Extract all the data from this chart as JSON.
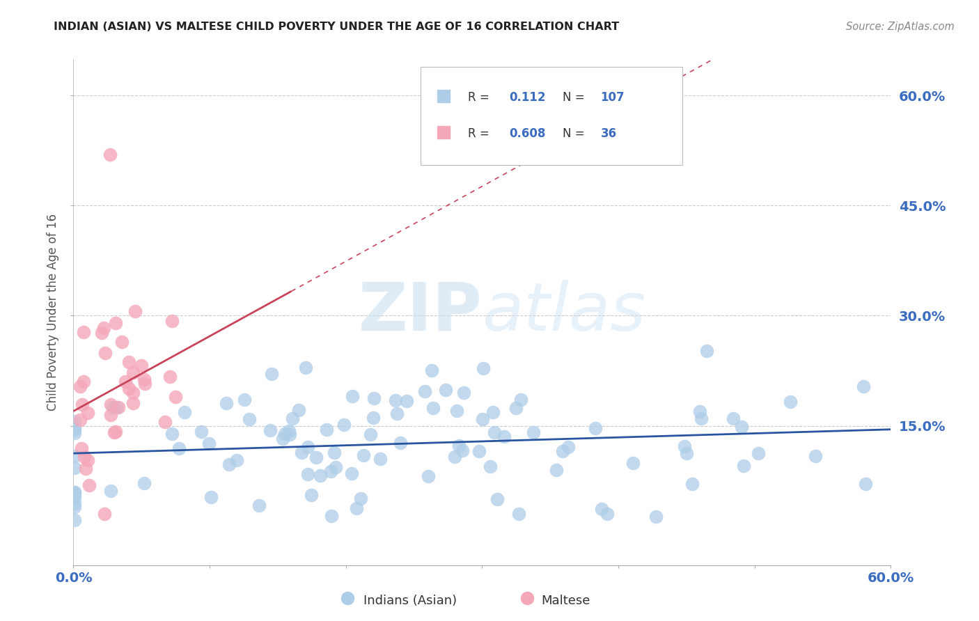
{
  "title": "INDIAN (ASIAN) VS MALTESE CHILD POVERTY UNDER THE AGE OF 16 CORRELATION CHART",
  "source": "Source: ZipAtlas.com",
  "ylabel": "Child Poverty Under the Age of 16",
  "xlim": [
    0.0,
    0.6
  ],
  "ylim": [
    -0.04,
    0.65
  ],
  "R_indian": 0.112,
  "N_indian": 107,
  "R_maltese": 0.608,
  "N_maltese": 36,
  "indian_color": "#aecde8",
  "maltese_color": "#f4a7b9",
  "indian_line_color": "#2955a0",
  "maltese_line_color": "#c9435a",
  "legend_label_indian": "Indians (Asian)",
  "legend_label_maltese": "Maltese",
  "watermark_zip": "ZIP",
  "watermark_atlas": "atlas",
  "background_color": "#ffffff",
  "grid_color": "#cccccc",
  "tick_color": "#3a6cbf",
  "title_color": "#222222",
  "source_color": "#888888",
  "ylabel_color": "#555555"
}
